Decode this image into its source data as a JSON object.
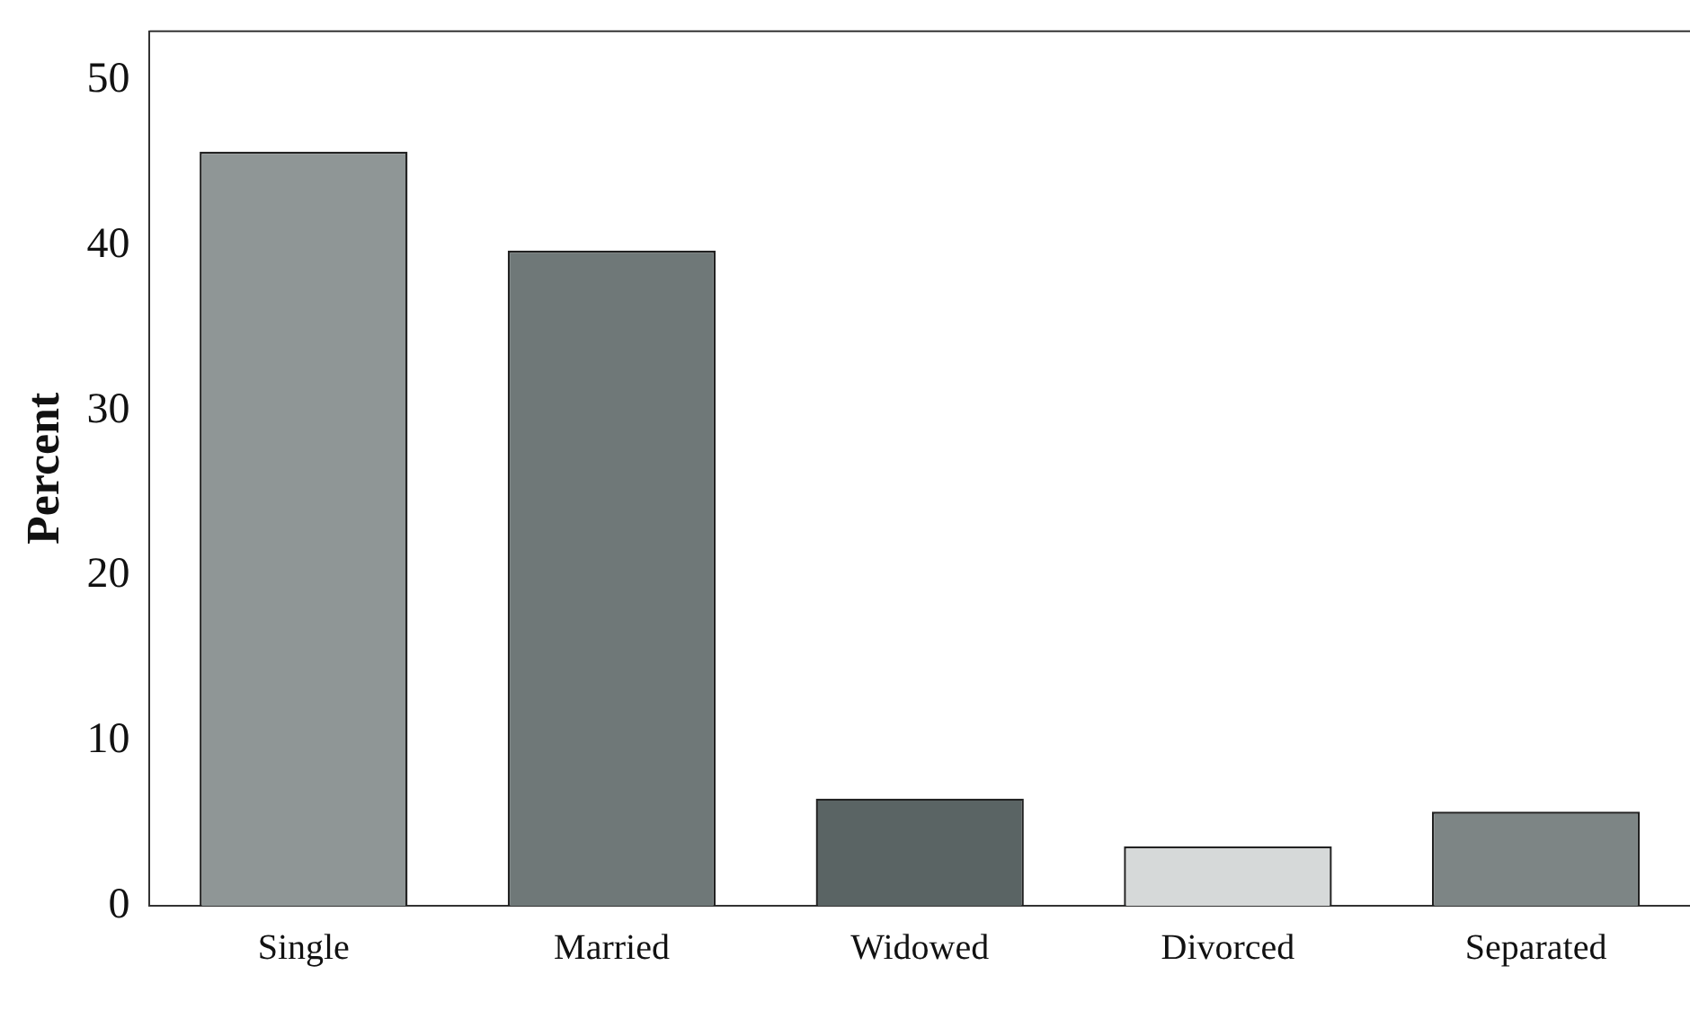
{
  "chart_data": {
    "type": "bar",
    "ylabel": "Percent",
    "categories": [
      "Single",
      "Married",
      "Widowed",
      "Divorced",
      "Separated"
    ],
    "values": [
      45.7,
      39.7,
      6.5,
      3.6,
      5.7
    ],
    "colors": [
      "#8f9696",
      "#6f7878",
      "#5a6464",
      "#d6d9d9",
      "#7d8585"
    ],
    "ylim": [
      0,
      53
    ],
    "yticks": [
      0,
      10,
      20,
      30,
      40,
      50
    ],
    "grid": false,
    "legend": false
  }
}
